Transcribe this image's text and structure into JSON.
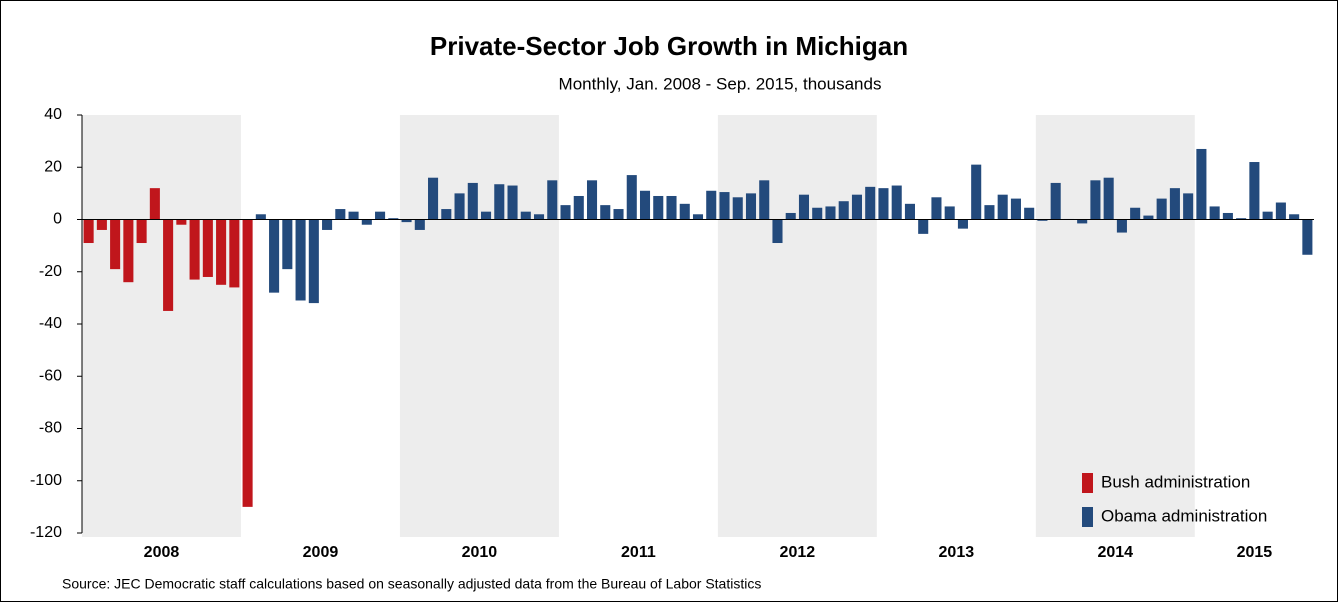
{
  "chart_data": {
    "type": "bar",
    "title": "Private-Sector Job Growth in Michigan",
    "subtitle": "Monthly, Jan. 2008 - Sep. 2015, thousands",
    "source": "Source: JEC Democratic staff calculations based on seasonally adjusted data from the Bureau of Labor Statistics",
    "year_labels": [
      "2008",
      "2009",
      "2010",
      "2011",
      "2012",
      "2013",
      "2014",
      "2015"
    ],
    "ylim": [
      -120,
      40
    ],
    "yticks": [
      -120,
      -100,
      -80,
      -60,
      -40,
      -20,
      0,
      20,
      40
    ],
    "legend": "bottom-right",
    "series": [
      {
        "name": "Bush administration",
        "color": "#c0161c",
        "values": [
          -9,
          -4,
          -19,
          -24,
          -9,
          12,
          -35,
          -2,
          -23,
          -22,
          -25,
          -26,
          -110,
          null,
          null,
          null,
          null,
          null,
          null,
          null,
          null,
          null,
          null,
          null,
          null,
          null,
          null,
          null,
          null,
          null,
          null,
          null,
          null,
          null,
          null,
          null,
          null,
          null,
          null,
          null,
          null,
          null,
          null,
          null,
          null,
          null,
          null,
          null,
          null,
          null,
          null,
          null,
          null,
          null,
          null,
          null,
          null,
          null,
          null,
          null,
          null,
          null,
          null,
          null,
          null,
          null,
          null,
          null,
          null,
          null,
          null,
          null,
          null,
          null,
          null,
          null,
          null,
          null,
          null,
          null,
          null,
          null,
          null,
          null,
          null,
          null,
          null,
          null,
          null,
          null,
          null,
          null,
          null
        ]
      },
      {
        "name": "Obama administration",
        "color": "#234a7c",
        "values": [
          null,
          null,
          null,
          null,
          null,
          null,
          null,
          null,
          null,
          null,
          null,
          null,
          null,
          2,
          -28,
          -19,
          -31,
          -32,
          -4,
          4,
          3,
          -2,
          3,
          0.5,
          -1,
          -4,
          16,
          4,
          10,
          14,
          3,
          13.5,
          13,
          3,
          2,
          15,
          5.5,
          9,
          15,
          5.5,
          4,
          17,
          11,
          9,
          9,
          6,
          2,
          11,
          10.5,
          8.5,
          10,
          15,
          -9,
          2.5,
          9.5,
          4.5,
          5,
          7,
          9.5,
          12.5,
          12,
          13,
          6,
          -5.5,
          8.5,
          5,
          -3.5,
          21,
          5.5,
          9.5,
          8,
          4.5,
          -0.5,
          14,
          0.2,
          -1.5,
          15,
          16,
          -5,
          4.5,
          1.5,
          8,
          12,
          10,
          27,
          5,
          2.5,
          0.5,
          22,
          3,
          6.5,
          2,
          -13.5
        ]
      }
    ]
  }
}
